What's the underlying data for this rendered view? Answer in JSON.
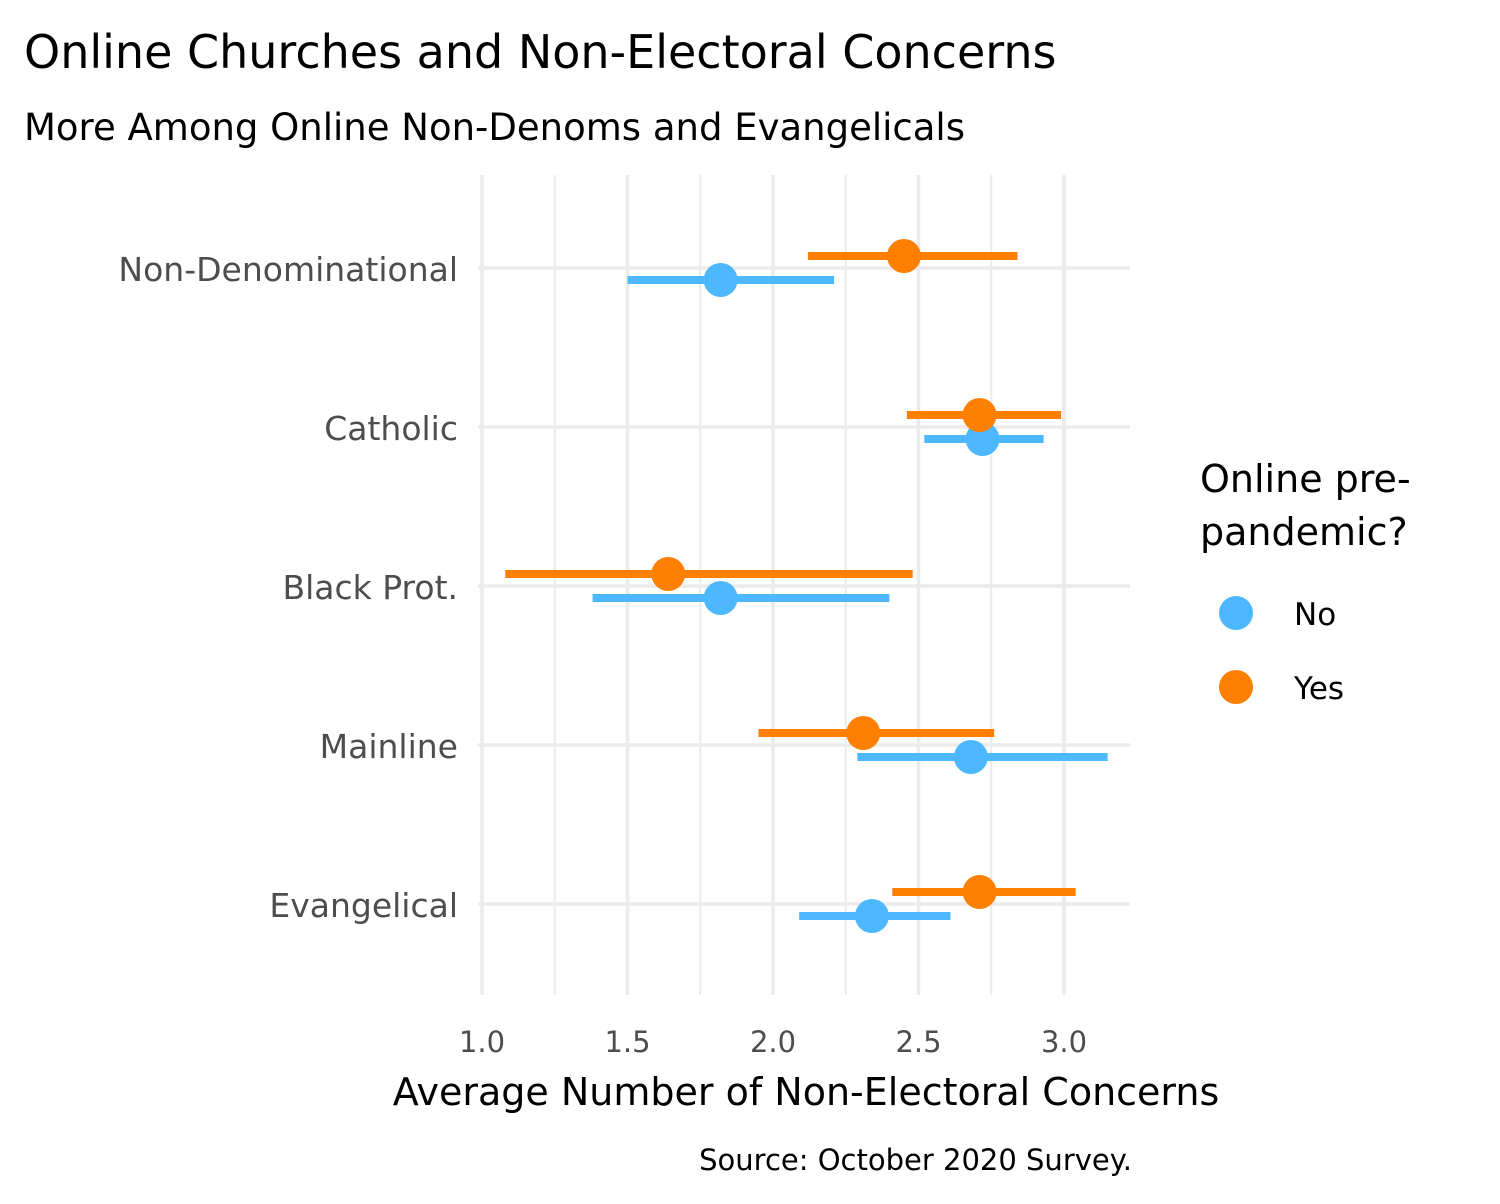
{
  "chart_data": {
    "type": "dot-errorbar",
    "title": "Online Churches and Non-Electoral Concerns",
    "subtitle": "More Among Online Non-Denoms and Evangelicals",
    "xlabel": "Average Number of Non-Electoral Concerns",
    "ylabel": "",
    "caption": "Source: October 2020 Survey.",
    "xlim": [
      1.0,
      3.23
    ],
    "xticks": [
      "1.0",
      "1.5",
      "2.0",
      "2.5",
      "3.0"
    ],
    "xtick_values": [
      1.0,
      1.5,
      2.0,
      2.5,
      3.0
    ],
    "grid": true,
    "categories": [
      "Non-Denominational",
      "Catholic",
      "Black Prot.",
      "Mainline",
      "Evangelical"
    ],
    "legend": {
      "title_line1": "Online pre-",
      "title_line2": "pandemic?",
      "placement": "right"
    },
    "series": [
      {
        "name": "No",
        "color": "#4DB8FF",
        "values": [
          1.82,
          2.72,
          1.82,
          2.68,
          2.34
        ],
        "lower": [
          1.5,
          2.52,
          1.38,
          2.29,
          2.09
        ],
        "upper": [
          2.21,
          2.93,
          2.4,
          3.15,
          2.61
        ]
      },
      {
        "name": "Yes",
        "color": "#FF7F00",
        "values": [
          2.45,
          2.71,
          1.64,
          2.31,
          2.71
        ],
        "lower": [
          2.12,
          2.46,
          1.08,
          1.95,
          2.41
        ],
        "upper": [
          2.84,
          2.99,
          2.48,
          2.76,
          3.04
        ]
      }
    ]
  }
}
